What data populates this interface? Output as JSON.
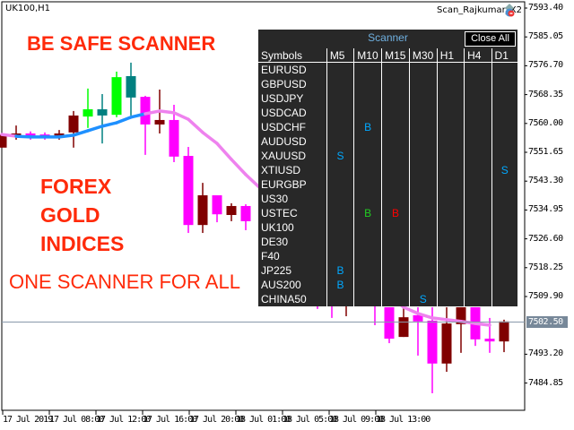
{
  "chart": {
    "symbol_timeframe": "UK100,H1",
    "expert_name": "Scan_Rajkumar_X2",
    "current_price": "7502.50",
    "price_axis": [
      "7593.40",
      "7585.05",
      "7576.70",
      "7568.35",
      "7560.00",
      "7551.65",
      "7543.30",
      "7534.95",
      "7526.60",
      "7518.25",
      "7509.90",
      "7493.20",
      "7484.85"
    ],
    "time_axis": [
      "17 Jul 2019",
      "17 Jul 08:00",
      "17 Jul 12:00",
      "17 Jul 16:00",
      "17 Jul 20:00",
      "18 Jul 01:00",
      "18 Jul 05:00",
      "18 Jul 09:00",
      "18 Jul 13:00"
    ],
    "colors": {
      "bull": "#00ff00",
      "bull_alt": "#008080",
      "bear": "#ff00ff",
      "bear_alt": "#800000",
      "ma_up": "#1e90ff",
      "ma_down": "#ee82ee",
      "price_line": "#8899aa"
    },
    "candles": [
      {
        "h": 7556.8,
        "l": 7553.0,
        "bh": 7556.8,
        "bl": 7553.0,
        "c": "bear_alt"
      },
      {
        "h": 7559.4,
        "l": 7555.3,
        "bh": 7557.1,
        "bl": 7556.3,
        "c": "bear_alt"
      },
      {
        "h": 7557.7,
        "l": 7555.3,
        "bh": 7557.1,
        "bl": 7556.3,
        "c": "bear"
      },
      {
        "h": 7557.4,
        "l": 7555.3,
        "bh": 7556.8,
        "bl": 7556.1,
        "c": "bear"
      },
      {
        "h": 7558.1,
        "l": 7555.3,
        "bh": 7557.1,
        "bl": 7556.1,
        "c": "bear_alt"
      },
      {
        "h": 7563.6,
        "l": 7553.0,
        "bh": 7562.3,
        "bl": 7557.4,
        "c": "bear_alt"
      },
      {
        "h": 7570.1,
        "l": 7558.7,
        "bh": 7564.1,
        "bl": 7562.0,
        "c": "bull"
      },
      {
        "h": 7568.5,
        "l": 7554.2,
        "bh": 7564.1,
        "bl": 7562.3,
        "c": "bull_alt"
      },
      {
        "h": 7575.0,
        "l": 7561.8,
        "bh": 7573.4,
        "bl": 7562.5,
        "c": "bull"
      },
      {
        "h": 7577.6,
        "l": 7562.3,
        "bh": 7573.7,
        "bl": 7567.5,
        "c": "bull_alt"
      },
      {
        "h": 7568.0,
        "l": 7550.9,
        "bh": 7567.7,
        "bl": 7559.7,
        "c": "bear"
      },
      {
        "h": 7569.8,
        "l": 7557.1,
        "bh": 7561.0,
        "bl": 7559.7,
        "c": "bear_alt"
      },
      {
        "h": 7565.4,
        "l": 7548.8,
        "bh": 7561.0,
        "bl": 7550.4,
        "c": "bear"
      },
      {
        "h": 7553.2,
        "l": 7528.3,
        "bh": 7550.6,
        "bl": 7530.6,
        "c": "bear"
      },
      {
        "h": 7542.8,
        "l": 7528.3,
        "bh": 7539.2,
        "bl": 7530.6,
        "c": "bear_alt"
      },
      {
        "h": 7539.2,
        "l": 7531.4,
        "bh": 7539.2,
        "bl": 7533.7,
        "c": "bear"
      },
      {
        "h": 7536.9,
        "l": 7531.7,
        "bh": 7536.1,
        "bl": 7533.5,
        "c": "bear_alt"
      },
      {
        "h": 7536.6,
        "l": 7529.1,
        "bh": 7536.1,
        "bl": 7531.7,
        "c": "bear"
      },
      null,
      null,
      null,
      null,
      {
        "l": 7506.3,
        "c": "bear"
      },
      {
        "l": 7503.7,
        "c": "bear"
      },
      {
        "l": 7504.2,
        "c": "bear_alt"
      },
      null,
      {
        "l": 7501.6,
        "c": "bear"
      },
      {
        "h": 7506.8,
        "l": 7496.4,
        "bh": 7506.8,
        "bl": 7497.7,
        "c": "bear"
      },
      {
        "h": 7506.8,
        "l": 7498.2,
        "bh": 7503.9,
        "bl": 7498.2,
        "c": "bear_alt"
      },
      {
        "h": 7506.8,
        "l": 7492.8,
        "bh": 7504.5,
        "bl": 7502.7,
        "c": "bear"
      },
      {
        "h": 7506.8,
        "l": 7481.9,
        "bh": 7502.9,
        "bl": 7490.5,
        "c": "bear"
      },
      {
        "h": 7506.8,
        "l": 7488.1,
        "bh": 7502.1,
        "bl": 7490.5,
        "c": "bear_alt"
      },
      {
        "h": 7506.8,
        "l": 7493.6,
        "bh": 7506.8,
        "bl": 7501.9,
        "c": "bear_alt"
      },
      {
        "h": 7506.8,
        "l": 7495.6,
        "bh": 7506.8,
        "bl": 7497.5,
        "c": "bear"
      },
      {
        "h": 7503.7,
        "l": 7493.6,
        "bh": 7497.7,
        "bl": 7496.9,
        "c": "bear"
      },
      {
        "h": 7503.2,
        "l": 7493.8,
        "bh": 7502.7,
        "bl": 7496.9,
        "c": "bear_alt"
      }
    ],
    "ma": [
      {
        "v": 7556.8,
        "d": "down"
      },
      {
        "v": 7556.3,
        "d": "down"
      },
      {
        "v": 7556.1,
        "d": "up"
      },
      {
        "v": 7556.1,
        "d": "up"
      },
      {
        "v": 7556.1,
        "d": "up"
      },
      {
        "v": 7556.6,
        "d": "up"
      },
      {
        "v": 7557.9,
        "d": "up"
      },
      {
        "v": 7559.2,
        "d": "up"
      },
      {
        "v": 7560.2,
        "d": "up"
      },
      {
        "v": 7561.8,
        "d": "up"
      },
      {
        "v": 7562.8,
        "d": "up"
      },
      {
        "v": 7563.6,
        "d": "down"
      },
      {
        "v": 7563.1,
        "d": "down"
      },
      {
        "v": 7561.2,
        "d": "down"
      },
      {
        "v": 7557.4,
        "d": "down"
      },
      {
        "v": 7554.2,
        "d": "down"
      },
      {
        "v": 7549.6,
        "d": "down"
      },
      {
        "v": 7545.2,
        "d": "down"
      },
      {
        "v": 7541.3,
        "d": "down"
      },
      null,
      null,
      null,
      null,
      null,
      null,
      null,
      null,
      null,
      {
        "v": 7506.8,
        "d": "down"
      },
      {
        "v": 7505.0,
        "d": "down"
      },
      {
        "v": 7503.7,
        "d": "down"
      },
      {
        "v": 7503.2,
        "d": "down"
      },
      {
        "v": 7502.7,
        "d": "down"
      },
      {
        "v": 7502.1,
        "d": "down"
      },
      {
        "v": 7501.6,
        "d": "down"
      }
    ]
  },
  "overlay_text": {
    "headline": "BE SAFE SCANNER",
    "line1": "FOREX",
    "line2": "GOLD",
    "line3": "INDICES",
    "tagline": "ONE SCANNER FOR ALL"
  },
  "scanner": {
    "title": "Scanner",
    "close_all_label": "Close All",
    "headers": [
      "Symbols",
      "M5",
      "M10",
      "M15",
      "M30",
      "H1",
      "H4",
      "D1"
    ],
    "rows": [
      {
        "symbol": "EURUSD",
        "cells": [
          "",
          "",
          "",
          "",
          "",
          "",
          ""
        ]
      },
      {
        "symbol": "GBPUSD",
        "cells": [
          "",
          "",
          "",
          "",
          "",
          "",
          ""
        ]
      },
      {
        "symbol": "USDJPY",
        "cells": [
          "",
          "",
          "",
          "",
          "",
          "",
          ""
        ]
      },
      {
        "symbol": "USDCAD",
        "cells": [
          "",
          "",
          "",
          "",
          "",
          "",
          ""
        ]
      },
      {
        "symbol": "USDCHF",
        "cells": [
          "",
          "B",
          "",
          "",
          "",
          "",
          ""
        ]
      },
      {
        "symbol": "AUDUSD",
        "cells": [
          "",
          "",
          "",
          "",
          "",
          "",
          ""
        ]
      },
      {
        "symbol": "XAUUSD",
        "cells": [
          "S",
          "",
          "",
          "",
          "",
          "",
          ""
        ]
      },
      {
        "symbol": "XTIUSD",
        "cells": [
          "",
          "",
          "",
          "",
          "",
          "",
          "S"
        ]
      },
      {
        "symbol": "EURGBP",
        "cells": [
          "",
          "",
          "",
          "",
          "",
          "",
          ""
        ]
      },
      {
        "symbol": "US30",
        "cells": [
          "",
          "",
          "",
          "",
          "",
          "",
          ""
        ]
      },
      {
        "symbol": "USTEC",
        "cells": [
          "",
          "B",
          "B",
          "",
          "",
          "",
          ""
        ],
        "cell_colors": [
          "",
          "#22cc22",
          "#ff0000",
          "",
          "",
          "",
          ""
        ]
      },
      {
        "symbol": "UK100",
        "cells": [
          "",
          "",
          "",
          "",
          "",
          "",
          ""
        ]
      },
      {
        "symbol": "DE30",
        "cells": [
          "",
          "",
          "",
          "",
          "",
          "",
          ""
        ]
      },
      {
        "symbol": "F40",
        "cells": [
          "",
          "",
          "",
          "",
          "",
          "",
          ""
        ]
      },
      {
        "symbol": "JP225",
        "cells": [
          "B",
          "",
          "",
          "",
          "",
          "",
          ""
        ]
      },
      {
        "symbol": "AUS200",
        "cells": [
          "B",
          "",
          "",
          "",
          "",
          "",
          ""
        ]
      },
      {
        "symbol": "CHINA50",
        "cells": [
          "",
          "",
          "",
          "S",
          "",
          "",
          ""
        ]
      }
    ],
    "default_signal_color": "#00a8ff"
  }
}
